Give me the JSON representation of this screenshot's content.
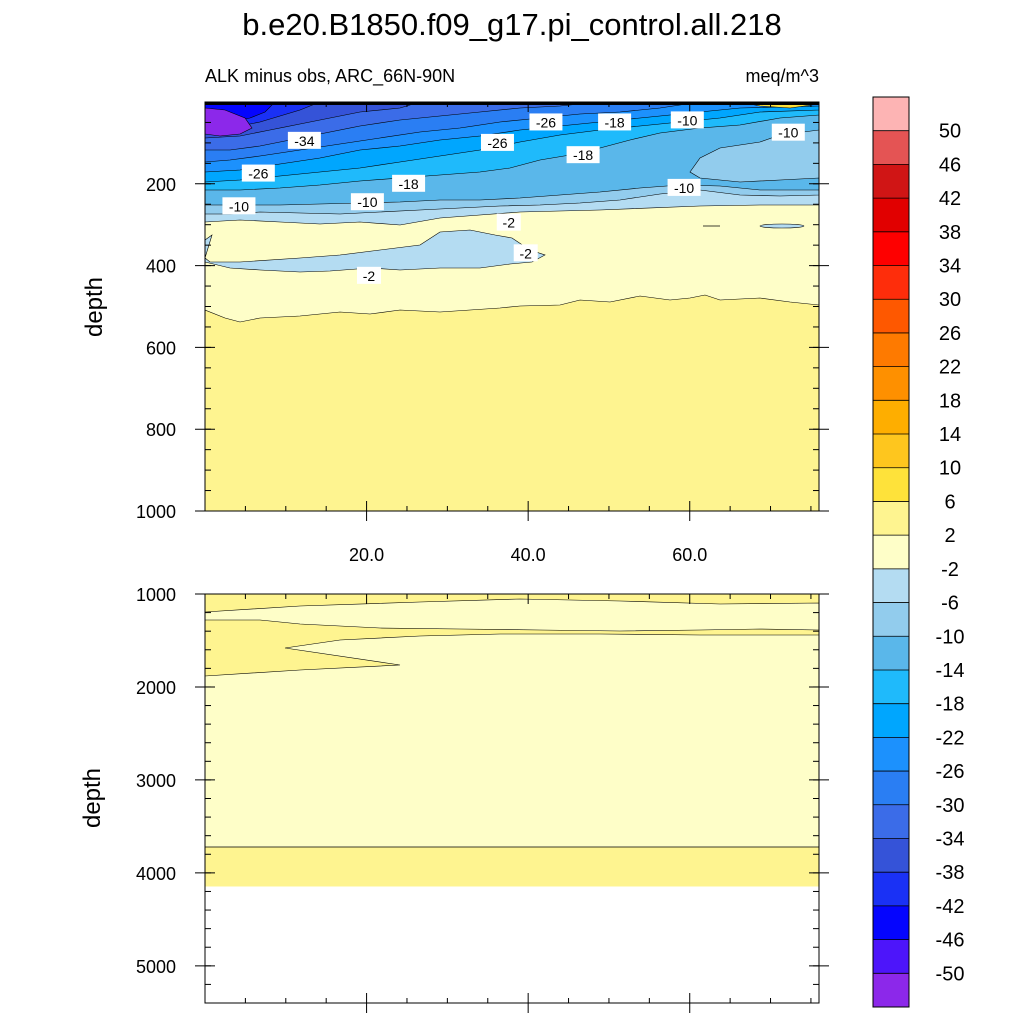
{
  "chart_data": {
    "type": "contour",
    "title": "b.e20.B1850.f09_g17.pi_control.all.218",
    "subtitle_left": "ALK minus obs, ARC_66N-90N",
    "subtitle_right": "meq/m^3",
    "x_range": [
      0,
      76
    ],
    "x_ticks": [
      20.0,
      40.0,
      60.0
    ],
    "x_tick_labels": [
      "20.0",
      "40.0",
      "60.0"
    ],
    "panels": [
      {
        "ylabel": "depth",
        "ylim": [
          0,
          1000
        ],
        "y_ticks": [
          200,
          400,
          600,
          800,
          1000
        ],
        "y_tick_labels": [
          "200",
          "400",
          "600",
          "800",
          "1000"
        ],
        "x_ticks_labeled": true,
        "contour_labels": [
          {
            "text": "-34",
            "x": 12.3,
            "y": 95
          },
          {
            "text": "-26",
            "x": 6.6,
            "y": 175
          },
          {
            "text": "-26",
            "x": 36.2,
            "y": 100
          },
          {
            "text": "-26",
            "x": 42.2,
            "y": 50
          },
          {
            "text": "-18",
            "x": 25.2,
            "y": 200
          },
          {
            "text": "-18",
            "x": 46.8,
            "y": 130
          },
          {
            "text": "-18",
            "x": 50.7,
            "y": 50
          },
          {
            "text": "-10",
            "x": 4.2,
            "y": 255
          },
          {
            "text": "-10",
            "x": 20.1,
            "y": 245
          },
          {
            "text": "-10",
            "x": 59.7,
            "y": 45
          },
          {
            "text": "-10",
            "x": 59.3,
            "y": 210
          },
          {
            "text": "-10",
            "x": 72.2,
            "y": 75
          },
          {
            "text": "-2",
            "x": 37.6,
            "y": 295
          },
          {
            "text": "-2",
            "x": 39.7,
            "y": 370
          },
          {
            "text": "-2",
            "x": 20.3,
            "y": 425
          }
        ]
      },
      {
        "ylabel": "depth",
        "ylim": [
          1000,
          5400
        ],
        "y_ticks": [
          1000,
          2000,
          3000,
          4000,
          5000
        ],
        "y_tick_labels": [
          "1000",
          "2000",
          "3000",
          "4000",
          "5000"
        ],
        "x_ticks_labeled": false,
        "data_bottom": 4120,
        "contour_labels": []
      }
    ],
    "colorbar": {
      "labels": [
        "50",
        "46",
        "42",
        "38",
        "34",
        "30",
        "26",
        "22",
        "18",
        "14",
        "10",
        "6",
        "2",
        "-2",
        "-6",
        "-10",
        "-14",
        "-18",
        "-22",
        "-26",
        "-30",
        "-34",
        "-38",
        "-42",
        "-46",
        "-50"
      ],
      "colors": [
        "#fdb4b4",
        "#e45454",
        "#d01515",
        "#e10000",
        "#fe0000",
        "#fe2d0b",
        "#fe5800",
        "#fe7a00",
        "#fe9000",
        "#feae00",
        "#fec61e",
        "#fee23a",
        "#fef490",
        "#fefec8",
        "#b4dcf2",
        "#92cced",
        "#5ab7ea",
        "#1fbafb",
        "#00a6fe",
        "#1c91fd",
        "#2a7ef3",
        "#3b6ce8",
        "#3553d8",
        "#1a31f5",
        "#0505fe",
        "#4d15fa",
        "#8c28ea"
      ]
    }
  }
}
